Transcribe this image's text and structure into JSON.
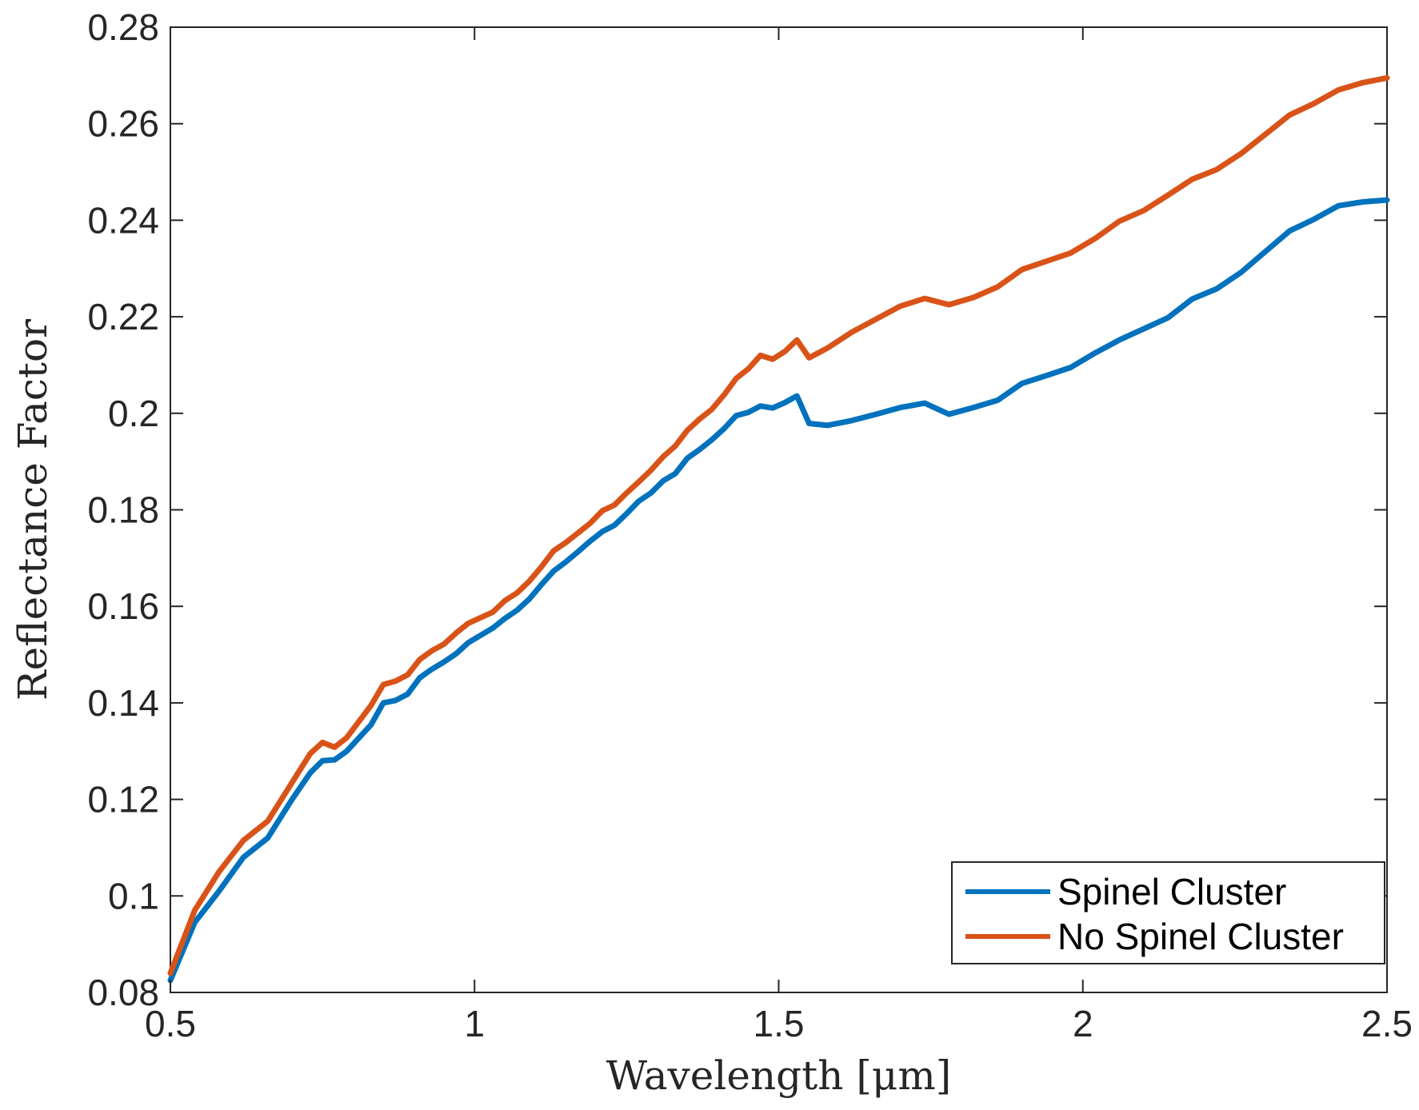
{
  "chart_data": {
    "type": "line",
    "title": "",
    "xlabel": "Wavelength [μm]",
    "ylabel": "Reflectance Factor",
    "xlim": [
      0.5,
      2.5
    ],
    "ylim": [
      0.08,
      0.28
    ],
    "xticks": [
      0.5,
      1,
      1.5,
      2,
      2.5
    ],
    "xtick_labels": [
      "0.5",
      "1",
      "1.5",
      "2",
      "2.5"
    ],
    "yticks": [
      0.08,
      0.1,
      0.12,
      0.14,
      0.16,
      0.18,
      0.2,
      0.22,
      0.24,
      0.26,
      0.28
    ],
    "ytick_labels": [
      "0.08",
      "0.1",
      "0.12",
      "0.14",
      "0.16",
      "0.18",
      "0.2",
      "0.22",
      "0.24",
      "0.26",
      "0.28"
    ],
    "grid": false,
    "legend_position": "bottom-right",
    "series": [
      {
        "name": "Spinel Cluster",
        "color": "#0072BD",
        "x": [
          0.5,
          0.54,
          0.58,
          0.62,
          0.66,
          0.7,
          0.73,
          0.75,
          0.77,
          0.79,
          0.83,
          0.85,
          0.87,
          0.89,
          0.91,
          0.93,
          0.95,
          0.97,
          0.99,
          1.03,
          1.05,
          1.07,
          1.09,
          1.11,
          1.13,
          1.15,
          1.17,
          1.19,
          1.21,
          1.23,
          1.25,
          1.27,
          1.29,
          1.31,
          1.33,
          1.35,
          1.37,
          1.39,
          1.41,
          1.43,
          1.45,
          1.47,
          1.49,
          1.51,
          1.53,
          1.55,
          1.58,
          1.62,
          1.66,
          1.7,
          1.74,
          1.78,
          1.82,
          1.86,
          1.9,
          1.94,
          1.98,
          2.02,
          2.06,
          2.1,
          2.14,
          2.18,
          2.22,
          2.26,
          2.3,
          2.34,
          2.38,
          2.42,
          2.46,
          2.5
        ],
        "values": [
          0.0825,
          0.0945,
          0.101,
          0.108,
          0.112,
          0.12,
          0.1255,
          0.128,
          0.1282,
          0.13,
          0.1355,
          0.14,
          0.1405,
          0.1418,
          0.1452,
          0.147,
          0.1485,
          0.1502,
          0.1525,
          0.1555,
          0.1575,
          0.1592,
          0.1615,
          0.1645,
          0.1673,
          0.1692,
          0.1713,
          0.1735,
          0.1755,
          0.1768,
          0.1792,
          0.1818,
          0.1835,
          0.186,
          0.1875,
          0.1907,
          0.1925,
          0.1945,
          0.1968,
          0.1995,
          0.2002,
          0.2015,
          0.2011,
          0.2022,
          0.2036,
          0.1979,
          0.1975,
          0.1985,
          0.1998,
          0.2012,
          0.2021,
          0.1998,
          0.2012,
          0.2027,
          0.2062,
          0.2078,
          0.2095,
          0.2125,
          0.2152,
          0.2175,
          0.2198,
          0.2237,
          0.2258,
          0.2292,
          0.2335,
          0.2378,
          0.2402,
          0.243,
          0.2438,
          0.2442
        ]
      },
      {
        "name": "No Spinel Cluster",
        "color": "#D95319",
        "x": [
          0.5,
          0.54,
          0.58,
          0.62,
          0.66,
          0.7,
          0.73,
          0.75,
          0.77,
          0.79,
          0.83,
          0.85,
          0.87,
          0.89,
          0.91,
          0.93,
          0.95,
          0.97,
          0.99,
          1.03,
          1.05,
          1.07,
          1.09,
          1.11,
          1.13,
          1.15,
          1.17,
          1.19,
          1.21,
          1.23,
          1.25,
          1.27,
          1.29,
          1.31,
          1.33,
          1.35,
          1.37,
          1.39,
          1.41,
          1.43,
          1.45,
          1.47,
          1.49,
          1.51,
          1.53,
          1.55,
          1.58,
          1.62,
          1.66,
          1.7,
          1.74,
          1.78,
          1.82,
          1.86,
          1.9,
          1.94,
          1.98,
          2.02,
          2.06,
          2.1,
          2.14,
          2.18,
          2.22,
          2.26,
          2.3,
          2.34,
          2.38,
          2.42,
          2.46,
          2.5
        ],
        "values": [
          0.084,
          0.097,
          0.105,
          0.1115,
          0.1155,
          0.1235,
          0.1295,
          0.1318,
          0.1308,
          0.1328,
          0.1395,
          0.1438,
          0.1445,
          0.1458,
          0.149,
          0.1508,
          0.1522,
          0.1545,
          0.1565,
          0.1588,
          0.1612,
          0.1628,
          0.1652,
          0.1682,
          0.1715,
          0.1732,
          0.1752,
          0.1772,
          0.1798,
          0.181,
          0.1835,
          0.1858,
          0.1882,
          0.191,
          0.1932,
          0.1965,
          0.1988,
          0.2008,
          0.2038,
          0.2072,
          0.2092,
          0.212,
          0.2112,
          0.2128,
          0.2152,
          0.2115,
          0.2135,
          0.2168,
          0.2195,
          0.2222,
          0.2238,
          0.2225,
          0.224,
          0.2262,
          0.2298,
          0.2315,
          0.2332,
          0.2362,
          0.2398,
          0.242,
          0.2452,
          0.2485,
          0.2505,
          0.2538,
          0.2578,
          0.2618,
          0.2642,
          0.267,
          0.2685,
          0.2695
        ]
      }
    ]
  }
}
